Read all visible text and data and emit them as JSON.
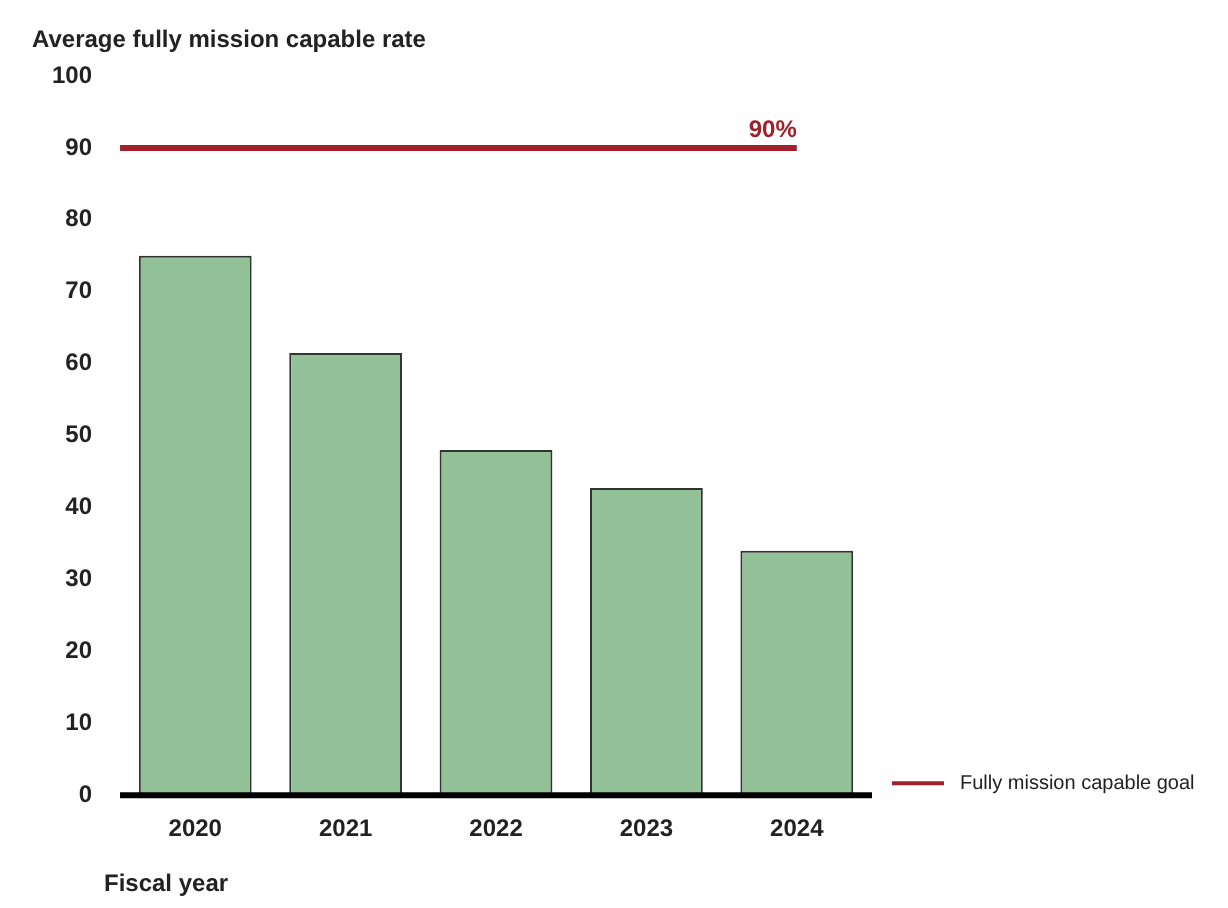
{
  "chart_data": {
    "type": "bar",
    "ylabel": "Average fully mission capable rate",
    "xlabel": "Fiscal year",
    "categories": [
      "2020",
      "2021",
      "2022",
      "2023",
      "2024"
    ],
    "values": [
      75,
      61.5,
      48,
      42.7,
      34
    ],
    "color": "#93c197",
    "ylim": [
      0,
      100
    ],
    "yticks": [
      0,
      10,
      20,
      30,
      40,
      50,
      60,
      70,
      80,
      90,
      100
    ],
    "ref_lines": [
      {
        "axis": "y",
        "value": 90,
        "label": "Fully mission capable goal",
        "color": "#a0202c"
      }
    ],
    "annotations": [
      {
        "text": "90%",
        "x": "2024",
        "y": 90
      }
    ],
    "legend": "bottom right",
    "grid": false
  }
}
